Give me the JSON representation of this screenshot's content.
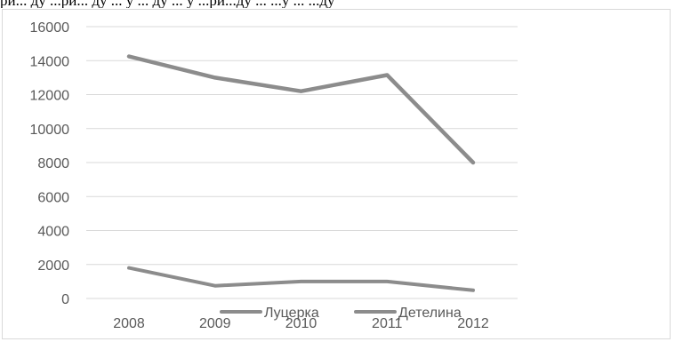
{
  "top_text": "ри... ду ...ри... ду ... у ... ду ... у ...ри...ду ... ...у ... ...ду",
  "colors": {
    "series": "#8c8c8c",
    "grid": "#d9d9d9",
    "text": "#595959"
  },
  "chart_data": {
    "type": "line",
    "title": "",
    "xlabel": "",
    "ylabel": "",
    "categories": [
      "2008",
      "2009",
      "2010",
      "2011",
      "2012"
    ],
    "ylim": [
      0,
      16000
    ],
    "yticks": [
      "0",
      "2000",
      "4000",
      "6000",
      "8000",
      "10000",
      "12000",
      "14000",
      "16000"
    ],
    "grid": true,
    "legend_position": "bottom",
    "series": [
      {
        "name": "Луцерка",
        "values": [
          14250,
          13000,
          12200,
          13150,
          8000
        ]
      },
      {
        "name": "Детелина",
        "values": [
          1800,
          750,
          1000,
          1000,
          480
        ]
      }
    ]
  }
}
